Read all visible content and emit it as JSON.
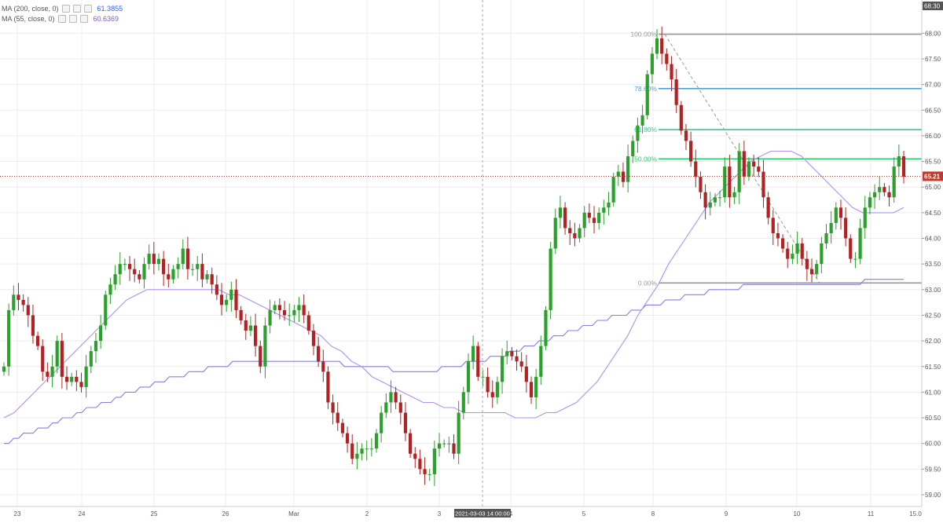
{
  "legend": [
    {
      "label": "MA (200, close, 0)",
      "value": "61.3855",
      "color": "#2962ff"
    },
    {
      "label": "MA (55, close, 0)",
      "value": "60.6369",
      "color": "#7e57c2"
    }
  ],
  "colors": {
    "up": "#2ca02c",
    "down": "#b22222",
    "ma200": "#8080e8",
    "ma55": "#b090f0",
    "grid": "#ececec",
    "price_line": "#c0392b",
    "fib_100": "#999999",
    "fib_786": "#4aa3df",
    "fib_618": "#3cc88a",
    "fib_50": "#2ecc71",
    "fib_0": "#999999",
    "crosshair": "#aaaaaa"
  },
  "crosshair_label": "2021-03-03 14:00:00",
  "chart_data": {
    "type": "candlestick",
    "ylim": [
      58.9,
      68.4
    ],
    "y_ticks": [
      "59.00",
      "59.50",
      "60.00",
      "60.50",
      "61.00",
      "61.50",
      "62.00",
      "62.50",
      "63.00",
      "63.50",
      "64.00",
      "64.50",
      "65.00",
      "65.50",
      "66.00",
      "66.50",
      "67.00",
      "67.50",
      "68.00"
    ],
    "top_label": "68.30",
    "x_labels": [
      "23",
      "24",
      "25",
      "26",
      "Mar",
      "2",
      "3",
      "4",
      "5",
      "8",
      "9",
      "10",
      "11",
      "15.0"
    ],
    "last_price": "65.21",
    "fibonacci": [
      {
        "label": "100.00%",
        "price": 67.98,
        "color_key": "fib_100"
      },
      {
        "label": "78.60%",
        "price": 66.92,
        "color_key": "fib_786"
      },
      {
        "label": "61.80%",
        "price": 66.12,
        "color_key": "fib_618"
      },
      {
        "label": "50.00%",
        "price": 65.55,
        "color_key": "fib_50"
      },
      {
        "label": "0.00%",
        "price": 63.13,
        "color_key": "fib_0"
      }
    ],
    "closes": [
      61.5,
      62.6,
      62.9,
      62.8,
      62.7,
      62.5,
      62.1,
      61.9,
      61.4,
      61.3,
      61.5,
      62.0,
      61.3,
      61.2,
      61.3,
      61.2,
      61.1,
      61.5,
      61.8,
      62.0,
      62.3,
      62.9,
      63.1,
      63.3,
      63.5,
      63.5,
      63.4,
      63.3,
      63.2,
      63.5,
      63.7,
      63.5,
      63.6,
      63.3,
      63.2,
      63.4,
      63.5,
      63.8,
      63.4,
      63.4,
      63.5,
      63.2,
      63.3,
      63.1,
      62.9,
      62.7,
      62.8,
      63.0,
      62.6,
      62.4,
      62.2,
      62.3,
      61.9,
      61.5,
      62.3,
      62.6,
      62.7,
      62.6,
      62.5,
      62.5,
      62.6,
      62.7,
      62.5,
      62.2,
      61.9,
      61.6,
      61.4,
      60.8,
      60.6,
      60.4,
      60.2,
      60.0,
      59.7,
      59.8,
      59.9,
      59.9,
      59.9,
      60.2,
      60.6,
      60.8,
      61.0,
      60.8,
      60.6,
      60.2,
      59.8,
      59.7,
      59.5,
      59.4,
      59.4,
      59.9,
      60.0,
      60.0,
      60.0,
      59.8,
      60.6,
      61.0,
      61.6,
      61.9,
      61.3,
      61.3,
      61.0,
      60.9,
      61.2,
      61.7,
      61.8,
      61.7,
      61.6,
      61.5,
      61.2,
      60.9,
      61.3,
      61.9,
      62.6,
      63.8,
      64.4,
      64.6,
      64.2,
      64.1,
      64.0,
      64.2,
      64.5,
      64.4,
      64.3,
      64.5,
      64.6,
      64.7,
      65.2,
      65.3,
      65.1,
      65.6,
      65.9,
      66.2,
      66.4,
      67.2,
      67.6,
      67.9,
      67.6,
      67.4,
      67.1,
      66.6,
      66.1,
      65.9,
      65.5,
      65.2,
      64.9,
      64.6,
      64.7,
      64.8,
      64.8,
      65.4,
      64.8,
      64.9,
      65.7,
      65.2,
      65.5,
      65.4,
      65.3,
      64.8,
      64.4,
      64.1,
      64.0,
      63.8,
      63.6,
      63.7,
      63.9,
      63.6,
      63.4,
      63.3,
      63.5,
      63.9,
      64.1,
      64.3,
      64.6,
      64.4,
      64.0,
      63.6,
      63.6,
      64.2,
      64.6,
      64.8,
      64.9,
      65.0,
      64.9,
      64.8,
      65.4,
      65.6,
      65.2
    ],
    "ma200": [
      60.0,
      60.0,
      60.1,
      60.1,
      60.2,
      60.2,
      60.2,
      60.3,
      60.3,
      60.3,
      60.4,
      60.4,
      60.5,
      60.5,
      60.5,
      60.6,
      60.6,
      60.7,
      60.7,
      60.7,
      60.8,
      60.8,
      60.8,
      60.9,
      60.9,
      61.0,
      61.0,
      61.0,
      61.1,
      61.1,
      61.1,
      61.2,
      61.2,
      61.2,
      61.3,
      61.3,
      61.3,
      61.3,
      61.4,
      61.4,
      61.4,
      61.4,
      61.5,
      61.5,
      61.5,
      61.5,
      61.5,
      61.6,
      61.6,
      61.6,
      61.6,
      61.6,
      61.6,
      61.6,
      61.6,
      61.6,
      61.6,
      61.6,
      61.6,
      61.6,
      61.6,
      61.6,
      61.6,
      61.6,
      61.6,
      61.6,
      61.6,
      61.6,
      61.6,
      61.6,
      61.5,
      61.5,
      61.5,
      61.5,
      61.5,
      61.5,
      61.5,
      61.5,
      61.5,
      61.5,
      61.4,
      61.4,
      61.4,
      61.4,
      61.4,
      61.4,
      61.4,
      61.4,
      61.4,
      61.4,
      61.5,
      61.5,
      61.5,
      61.5,
      61.5,
      61.6,
      61.6,
      61.6,
      61.6,
      61.6,
      61.7,
      61.7,
      61.7,
      61.7,
      61.8,
      61.8,
      61.8,
      61.9,
      61.9,
      61.9,
      62.0,
      62.0,
      62.0,
      62.1,
      62.1,
      62.1,
      62.2,
      62.2,
      62.2,
      62.3,
      62.3,
      62.3,
      62.4,
      62.4,
      62.4,
      62.5,
      62.5,
      62.5,
      62.5,
      62.6,
      62.6,
      62.6,
      62.7,
      62.7,
      62.7,
      62.7,
      62.8,
      62.8,
      62.8,
      62.8,
      62.9,
      62.9,
      62.9,
      62.9,
      62.9,
      63.0,
      63.0,
      63.0,
      63.0,
      63.0,
      63.0,
      63.0,
      63.1,
      63.1,
      63.1,
      63.1,
      63.1,
      63.1,
      63.1,
      63.1,
      63.1,
      63.1,
      63.1,
      63.1,
      63.1,
      63.1,
      63.1,
      63.1,
      63.1,
      63.1,
      63.1,
      63.1,
      63.1,
      63.1,
      63.1,
      63.1,
      63.1,
      63.2,
      63.2,
      63.2,
      63.2,
      63.2,
      63.2,
      63.2,
      63.2,
      63.2
    ],
    "ma55": [
      60.5,
      60.6,
      60.8,
      61.0,
      61.2,
      61.4,
      61.6,
      61.8,
      62.0,
      62.2,
      62.4,
      62.6,
      62.8,
      62.9,
      63.0,
      63.0,
      63.0,
      63.0,
      63.0,
      63.0,
      63.0,
      63.0,
      62.9,
      62.9,
      62.8,
      62.7,
      62.6,
      62.5,
      62.4,
      62.3,
      62.2,
      62.1,
      61.9,
      61.8,
      61.6,
      61.5,
      61.3,
      61.2,
      61.1,
      61.0,
      60.9,
      60.8,
      60.8,
      60.7,
      60.7,
      60.6,
      60.6,
      60.6,
      60.6,
      60.6,
      60.5,
      60.5,
      60.5,
      60.6,
      60.6,
      60.7,
      60.8,
      61.0,
      61.2,
      61.5,
      61.8,
      62.1,
      62.5,
      62.8,
      63.1,
      63.5,
      63.8,
      64.1,
      64.4,
      64.7,
      64.9,
      65.1,
      65.3,
      65.5,
      65.6,
      65.7,
      65.7,
      65.7,
      65.6,
      65.4,
      65.2,
      65.0,
      64.8,
      64.6,
      64.5,
      64.5,
      64.5,
      64.5,
      64.6
    ]
  }
}
